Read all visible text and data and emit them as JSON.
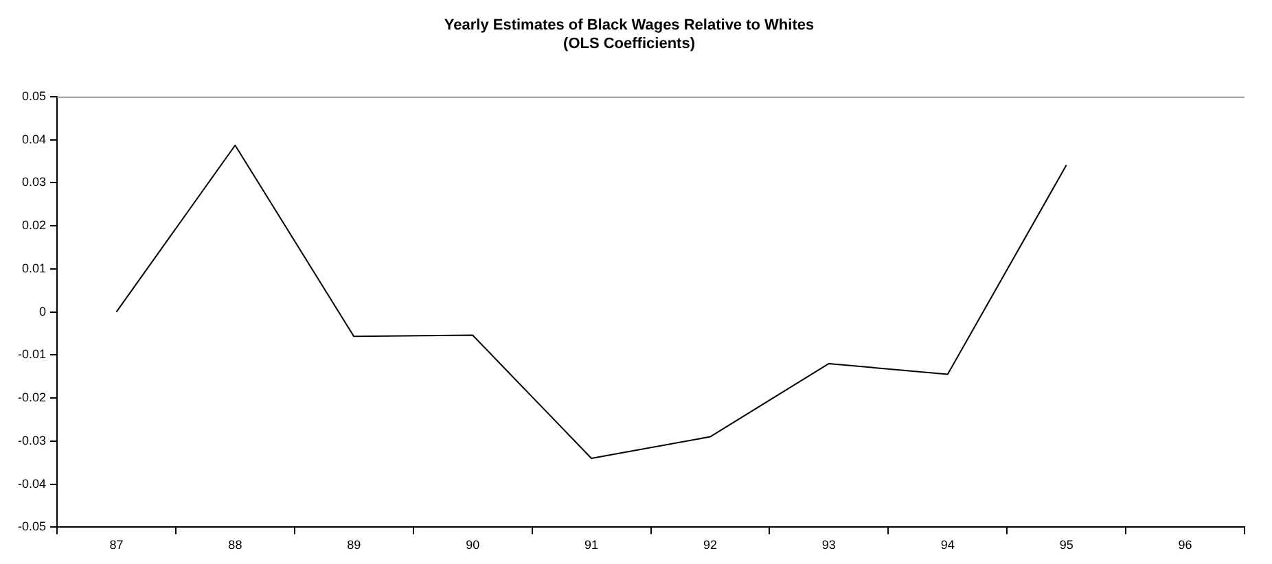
{
  "chart_data": {
    "type": "line",
    "title": "Yearly Estimates of Black Wages Relative to Whites",
    "subtitle": "(OLS Coefficients)",
    "categories": [
      "87",
      "88",
      "89",
      "90",
      "91",
      "92",
      "93",
      "94",
      "95",
      "96"
    ],
    "series": [
      {
        "color": "#000000",
        "values": [
          0,
          0.0387,
          -0.0057,
          -0.0054,
          -0.034,
          -0.029,
          -0.012,
          -0.0145,
          0.0341,
          null
        ]
      }
    ],
    "ylim": [
      -0.05,
      0.05
    ],
    "yticks": [
      -0.05,
      -0.04,
      -0.03,
      -0.02,
      -0.01,
      0,
      0.01,
      0.02,
      0.03,
      0.04,
      0.05
    ],
    "grid": false,
    "legend": false,
    "marker": "none",
    "line_style": "solid"
  }
}
